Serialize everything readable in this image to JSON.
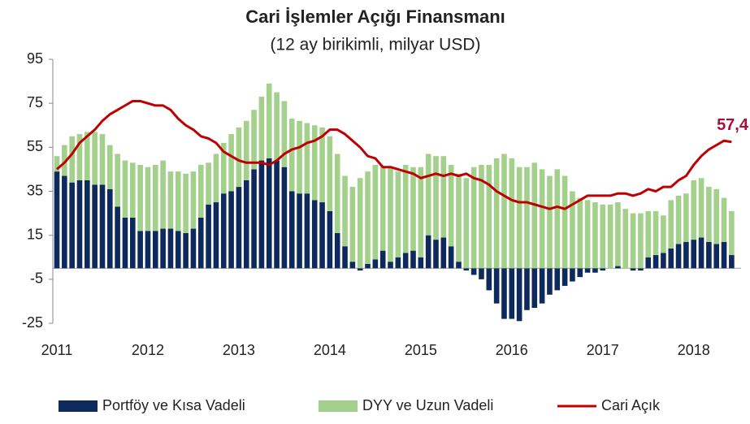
{
  "chart_data": {
    "type": "bar",
    "stacked": true,
    "title": "Cari İşlemler Açığı Finansmanı",
    "subtitle": "(12 ay birikimli, milyar USD)",
    "categories": [
      "2011",
      null,
      null,
      null,
      null,
      null,
      null,
      null,
      null,
      null,
      null,
      null,
      "2012",
      null,
      null,
      null,
      null,
      null,
      null,
      null,
      null,
      null,
      null,
      null,
      "2013",
      null,
      null,
      null,
      null,
      null,
      null,
      null,
      null,
      null,
      null,
      null,
      "2014",
      null,
      null,
      null,
      null,
      null,
      null,
      null,
      null,
      null,
      null,
      null,
      "2015",
      null,
      null,
      null,
      null,
      null,
      null,
      null,
      null,
      null,
      null,
      null,
      "2016",
      null,
      null,
      null,
      null,
      null,
      null,
      null,
      null,
      null,
      null,
      null,
      "2017",
      null,
      null,
      null,
      null,
      null,
      null,
      null,
      null,
      null,
      null,
      null,
      "2018",
      null,
      null,
      null,
      null,
      null
    ],
    "series": [
      {
        "name": "Portföy ve Kısa Vadeli",
        "type": "bar",
        "color": "#0e2a5c",
        "values": [
          44,
          42,
          39,
          40,
          40,
          38,
          38,
          36,
          28,
          23,
          23,
          17,
          17,
          17,
          18,
          18,
          17,
          16,
          18,
          23,
          29,
          30,
          34,
          35,
          37,
          40,
          45,
          49,
          50,
          49,
          46,
          35,
          34,
          34,
          31,
          30,
          26,
          16,
          10,
          3,
          -1,
          2,
          4,
          8,
          3,
          5,
          7,
          8,
          5,
          15,
          13,
          14,
          10,
          3,
          -1,
          -3,
          -5,
          -10,
          -16,
          -23,
          -23,
          -24,
          -19,
          -18,
          -16,
          -12,
          -10,
          -8,
          -6,
          -4,
          -2,
          -2,
          -1,
          0,
          1,
          0,
          -1,
          -1,
          5,
          6,
          7,
          9,
          11,
          12,
          13,
          14,
          12,
          11,
          12,
          6
        ]
      },
      {
        "name": "DYY ve Uzun Vadeli",
        "type": "bar",
        "color": "#a3d08a",
        "values": [
          7,
          14,
          21,
          21,
          22,
          24,
          23,
          20,
          24,
          26,
          25,
          30,
          29,
          30,
          31,
          26,
          27,
          27,
          26,
          24,
          19,
          22,
          23,
          26,
          27,
          27,
          27,
          29,
          34,
          31,
          30,
          33,
          33,
          32,
          34,
          34,
          34,
          36,
          32,
          34,
          41,
          42,
          43,
          38,
          43,
          39,
          40,
          38,
          41,
          37,
          38,
          37,
          37,
          40,
          41,
          46,
          47,
          47,
          50,
          52,
          50,
          46,
          46,
          48,
          45,
          42,
          45,
          42,
          35,
          32,
          31,
          30,
          29,
          29,
          29,
          27,
          25,
          25,
          21,
          20,
          17,
          22,
          22,
          22,
          27,
          27,
          25,
          25,
          20,
          20
        ]
      },
      {
        "name": "Cari Açık",
        "type": "line",
        "color": "#c00000",
        "values": [
          45,
          48,
          52,
          57,
          60,
          63,
          67,
          70,
          72,
          74,
          76,
          76,
          75,
          74,
          74,
          72,
          68,
          65,
          63,
          60,
          59,
          57,
          53,
          51,
          49,
          48,
          48,
          48,
          47,
          49,
          52,
          54,
          55,
          57,
          58,
          60,
          63,
          63,
          61,
          58,
          55,
          51,
          50,
          46,
          46,
          45,
          44,
          43,
          41,
          42,
          43,
          42,
          43,
          42,
          43,
          41,
          40,
          38,
          35,
          33,
          31,
          30,
          30,
          29,
          28,
          27,
          28,
          27,
          29,
          31,
          33,
          33,
          33,
          33,
          34,
          34,
          33,
          34,
          36,
          35,
          37,
          37,
          40,
          42,
          47,
          51,
          54,
          56,
          58,
          57.4
        ],
        "value_labels": [
          null,
          null,
          null,
          null,
          null,
          null,
          null,
          null,
          null,
          null,
          null,
          null,
          null,
          null,
          null,
          null,
          null,
          null,
          null,
          null,
          null,
          null,
          null,
          null,
          null,
          null,
          null,
          null,
          null,
          null,
          null,
          null,
          null,
          null,
          null,
          null,
          null,
          null,
          null,
          null,
          null,
          null,
          null,
          null,
          null,
          null,
          null,
          null,
          null,
          null,
          null,
          null,
          null,
          null,
          null,
          null,
          null,
          null,
          null,
          null,
          null,
          null,
          null,
          null,
          null,
          null,
          null,
          null,
          null,
          null,
          null,
          null,
          null,
          null,
          null,
          null,
          null,
          null,
          null,
          null,
          null,
          null,
          null,
          null,
          null,
          null,
          null,
          null,
          null,
          "57,4"
        ]
      }
    ],
    "ylim": [
      -25,
      95
    ],
    "yticks": [
      -25,
      -5,
      15,
      35,
      55,
      75,
      95
    ],
    "grid": false,
    "legend": "bottom"
  }
}
